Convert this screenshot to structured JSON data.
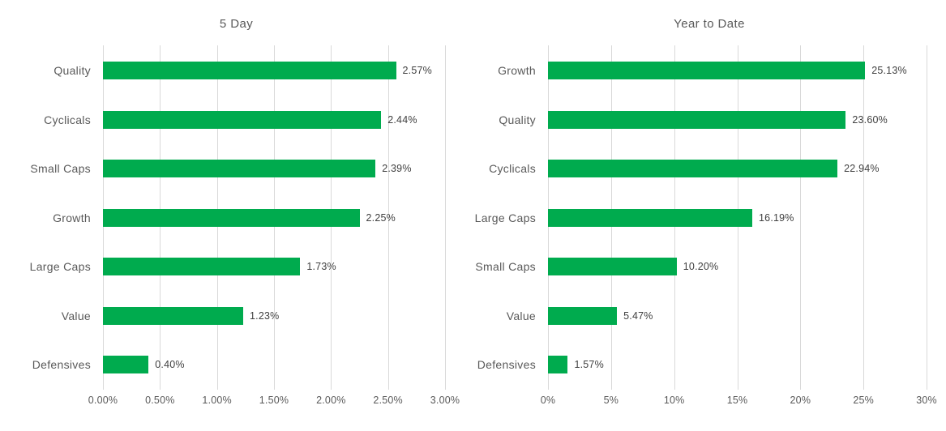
{
  "page": {
    "background": "#FFFFFF"
  },
  "colors": {
    "bar": "#00AB4E",
    "gridline": "#D9D9D9",
    "title_text": "#595959",
    "category_text": "#595959",
    "value_text": "#404040",
    "axis_text": "#595959"
  },
  "chart_data": [
    {
      "type": "bar",
      "orientation": "horizontal",
      "title": "5 Day",
      "categories": [
        "Quality",
        "Cyclicals",
        "Small Caps",
        "Growth",
        "Large Caps",
        "Value",
        "Defensives"
      ],
      "values": [
        2.57,
        2.44,
        2.39,
        2.25,
        1.73,
        1.23,
        0.4
      ],
      "value_labels": [
        "2.57%",
        "2.44%",
        "2.39%",
        "2.25%",
        "1.73%",
        "1.23%",
        "0.40%"
      ],
      "xlim": [
        0,
        3
      ],
      "tick_values": [
        0,
        0.5,
        1,
        1.5,
        2,
        2.5,
        3
      ],
      "tick_labels": [
        "0.00%",
        "0.50%",
        "1.00%",
        "1.50%",
        "2.00%",
        "2.50%",
        "3.00%"
      ],
      "grid": true,
      "legend": "none"
    },
    {
      "type": "bar",
      "orientation": "horizontal",
      "title": "Year to Date",
      "categories": [
        "Growth",
        "Quality",
        "Cyclicals",
        "Large Caps",
        "Small Caps",
        "Value",
        "Defensives"
      ],
      "values": [
        25.13,
        23.6,
        22.94,
        16.19,
        10.2,
        5.47,
        1.57
      ],
      "value_labels": [
        "25.13%",
        "23.60%",
        "22.94%",
        "16.19%",
        "10.20%",
        "5.47%",
        "1.57%"
      ],
      "xlim": [
        0,
        30
      ],
      "tick_values": [
        0,
        5,
        10,
        15,
        20,
        25,
        30
      ],
      "tick_labels": [
        "0%",
        "5%",
        "10%",
        "15%",
        "20%",
        "25%",
        "30%"
      ],
      "grid": true,
      "legend": "none"
    }
  ]
}
